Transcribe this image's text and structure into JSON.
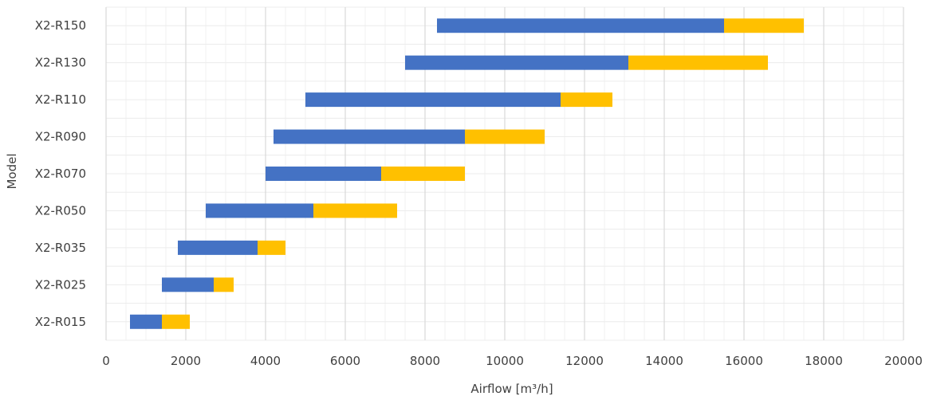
{
  "chart_data": {
    "type": "bar",
    "orientation": "horizontal",
    "stacked": true,
    "title": "",
    "xlabel": "Airflow [m³/h]",
    "ylabel": "Model",
    "xlim": [
      0,
      20000
    ],
    "x_ticks": [
      0,
      2000,
      4000,
      6000,
      8000,
      10000,
      12000,
      14000,
      16000,
      18000,
      20000
    ],
    "x_tick_labels": [
      "0",
      "2000",
      "4000",
      "6000",
      "8000",
      "10000",
      "12000",
      "14000",
      "16000",
      "18000",
      "20000"
    ],
    "grid": true,
    "legend": "none",
    "categories": [
      "X2-R015",
      "X2-R025",
      "X2-R035",
      "X2-R050",
      "X2-R070",
      "X2-R090",
      "X2-R110",
      "X2-R130",
      "X2-R150"
    ],
    "series": [
      {
        "role": "offset",
        "color": "transparent",
        "values": [
          600,
          1400,
          1800,
          2500,
          4000,
          4200,
          5000,
          7500,
          8300
        ]
      },
      {
        "role": "range",
        "color": "#4472C4",
        "values": [
          800,
          1300,
          2000,
          2700,
          2900,
          4800,
          6400,
          5600,
          7200
        ]
      },
      {
        "role": "range",
        "color": "#FFC000",
        "values": [
          700,
          500,
          700,
          2100,
          2100,
          2000,
          1300,
          3500,
          2000
        ]
      }
    ]
  }
}
